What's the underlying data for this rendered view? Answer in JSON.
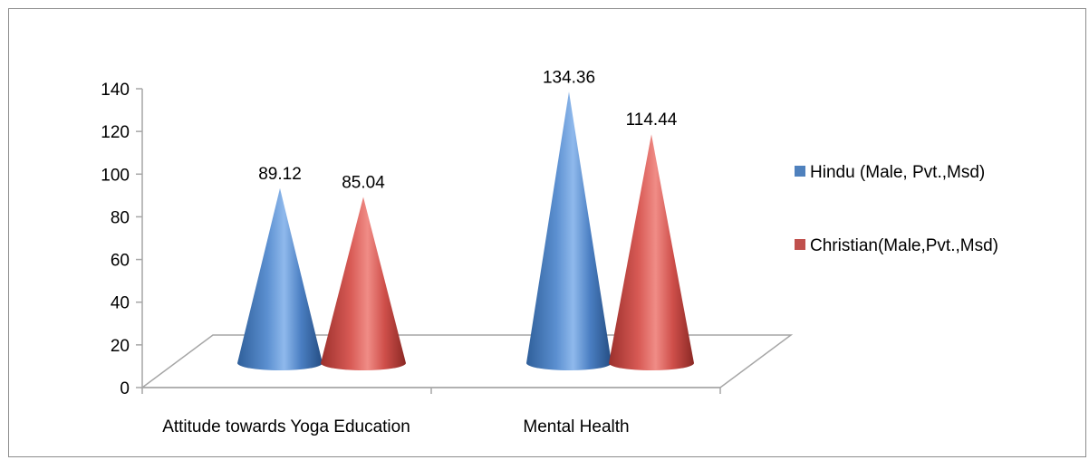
{
  "chart_data": {
    "type": "bar",
    "categories": [
      "Attitude towards Yoga Education",
      "Mental Health"
    ],
    "series": [
      {
        "name": "Hindu (Male, Pvt.,Msd)",
        "values": [
          89.12,
          134.36
        ],
        "color": "#4f81bd"
      },
      {
        "name": "Christian(Male,Pvt.,Msd)",
        "values": [
          85.04,
          114.44
        ],
        "color": "#c0504d"
      }
    ],
    "data_labels": [
      [
        "89.12",
        "134.36"
      ],
      [
        "85.04",
        "114.44"
      ]
    ],
    "y_ticks": [
      "0",
      "20",
      "40",
      "60",
      "80",
      "100",
      "120",
      "140"
    ],
    "ylim": [
      0,
      140
    ],
    "grid": false,
    "legend_position": "right",
    "bar_shape": "cone-3d",
    "title": "",
    "xlabel": "",
    "ylabel": ""
  }
}
